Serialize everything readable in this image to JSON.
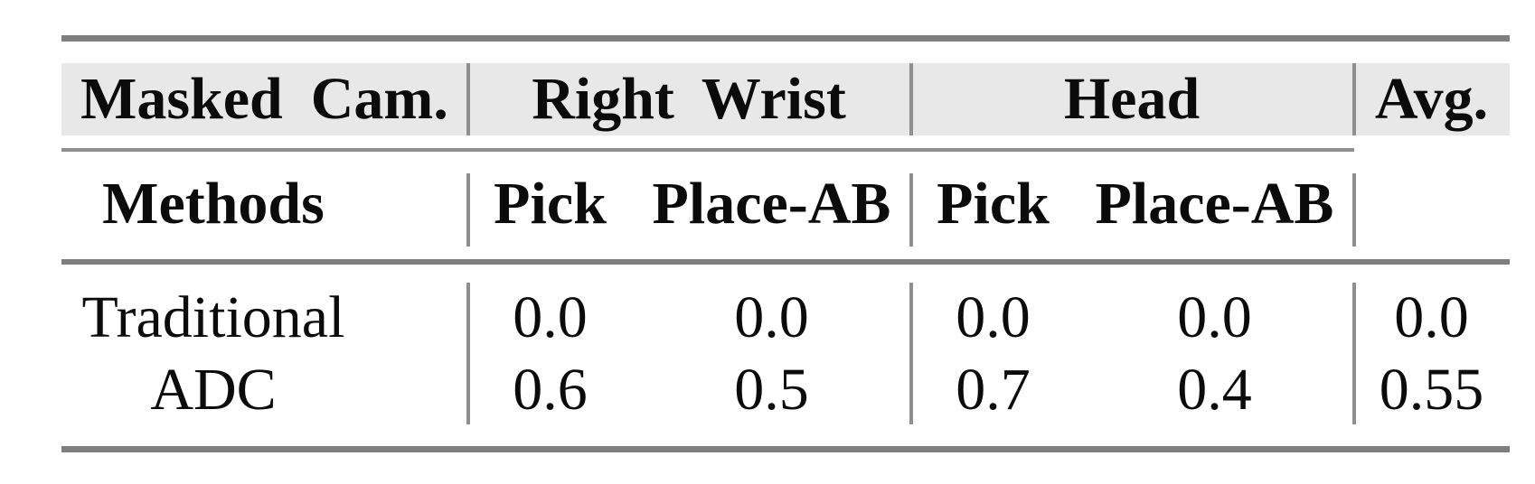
{
  "figure": {
    "header_row1": {
      "masked_cam": "Masked Cam.",
      "right_wrist": "Right Wrist",
      "head": "Head",
      "avg": "Avg."
    },
    "header_row2": {
      "methods": "Methods",
      "rw_pick": "Pick",
      "rw_place": "Place-AB",
      "head_pick": "Pick",
      "head_place": "Place-AB"
    },
    "rows": [
      {
        "method": "Traditional",
        "rw_pick": "0.0",
        "rw_place": "0.0",
        "head_pick": "0.0",
        "head_place": "0.0",
        "avg": "0.0"
      },
      {
        "method": "ADC",
        "rw_pick": "0.6",
        "rw_place": "0.5",
        "head_pick": "0.7",
        "head_place": "0.4",
        "avg": "0.55"
      }
    ]
  },
  "chart_data": {
    "type": "table",
    "column_groups": [
      {
        "label": "Masked Cam.",
        "span": 1
      },
      {
        "label": "Right Wrist",
        "span": 2
      },
      {
        "label": "Head",
        "span": 2
      },
      {
        "label": "Avg.",
        "span": 1
      }
    ],
    "columns": [
      "Methods",
      "Pick",
      "Place-AB",
      "Pick",
      "Place-AB",
      "Avg."
    ],
    "rows": [
      [
        "Traditional",
        0.0,
        0.0,
        0.0,
        0.0,
        0.0
      ],
      [
        "ADC",
        0.6,
        0.5,
        0.7,
        0.4,
        0.55
      ]
    ]
  },
  "colors": {
    "background": "#ffffff",
    "header_shading": "#e8e8e8",
    "thick_rule": "#7f7f7f",
    "thin_rule": "#8f8f8f",
    "text": "#0b0b0b"
  }
}
